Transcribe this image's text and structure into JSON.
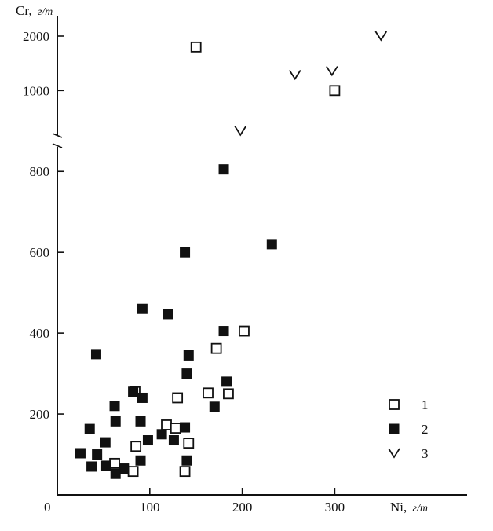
{
  "chart_data": {
    "type": "scatter",
    "x_axis": {
      "label_main": "Ni,",
      "label_unit": "г/т",
      "range": [
        0,
        380
      ],
      "ticks": [
        100,
        200,
        300
      ],
      "origin_label": "0"
    },
    "y_axis": {
      "label_main": "Cr,",
      "label_unit": "г/т",
      "broken": true,
      "ticks": [
        200,
        400,
        600,
        800,
        1000,
        2000
      ]
    },
    "series": [
      {
        "name": "1",
        "marker": "open-square",
        "points": [
          {
            "x": 150,
            "y": 1860
          },
          {
            "x": 300,
            "y": 1000
          },
          {
            "x": 202,
            "y": 405
          },
          {
            "x": 172,
            "y": 362
          },
          {
            "x": 84,
            "y": 255
          },
          {
            "x": 163,
            "y": 252
          },
          {
            "x": 185,
            "y": 250
          },
          {
            "x": 130,
            "y": 240
          },
          {
            "x": 118,
            "y": 173
          },
          {
            "x": 128,
            "y": 165
          },
          {
            "x": 142,
            "y": 128
          },
          {
            "x": 85,
            "y": 120
          },
          {
            "x": 62,
            "y": 78
          },
          {
            "x": 82,
            "y": 58
          },
          {
            "x": 138,
            "y": 58
          }
        ]
      },
      {
        "name": "2",
        "marker": "filled-square",
        "points": [
          {
            "x": 180,
            "y": 805
          },
          {
            "x": 138,
            "y": 600
          },
          {
            "x": 232,
            "y": 620
          },
          {
            "x": 92,
            "y": 460
          },
          {
            "x": 120,
            "y": 447
          },
          {
            "x": 180,
            "y": 405
          },
          {
            "x": 42,
            "y": 348
          },
          {
            "x": 142,
            "y": 345
          },
          {
            "x": 140,
            "y": 300
          },
          {
            "x": 183,
            "y": 280
          },
          {
            "x": 82,
            "y": 255
          },
          {
            "x": 92,
            "y": 240
          },
          {
            "x": 62,
            "y": 220
          },
          {
            "x": 170,
            "y": 218
          },
          {
            "x": 63,
            "y": 182
          },
          {
            "x": 90,
            "y": 182
          },
          {
            "x": 138,
            "y": 167
          },
          {
            "x": 35,
            "y": 163
          },
          {
            "x": 113,
            "y": 150
          },
          {
            "x": 98,
            "y": 135
          },
          {
            "x": 126,
            "y": 135
          },
          {
            "x": 52,
            "y": 130
          },
          {
            "x": 25,
            "y": 103
          },
          {
            "x": 43,
            "y": 100
          },
          {
            "x": 90,
            "y": 85
          },
          {
            "x": 140,
            "y": 85
          },
          {
            "x": 37,
            "y": 70
          },
          {
            "x": 53,
            "y": 72
          },
          {
            "x": 72,
            "y": 65
          },
          {
            "x": 63,
            "y": 52
          }
        ]
      },
      {
        "name": "3",
        "marker": "check",
        "points": [
          {
            "x": 198,
            "y": 900
          },
          {
            "x": 257,
            "y": 1500
          },
          {
            "x": 297,
            "y": 1550
          },
          {
            "x": 350,
            "y": 2000
          }
        ]
      }
    ],
    "legend": {
      "position": "bottom-right",
      "entries": [
        "1",
        "2",
        "3"
      ]
    }
  }
}
